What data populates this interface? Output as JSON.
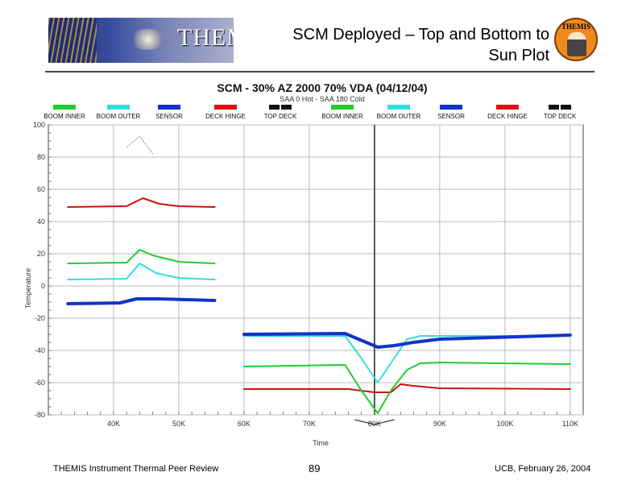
{
  "slide": {
    "title_line1": "SCM Deployed – Top and Bottom to",
    "title_line2": "Sun Plot",
    "banner_logo": "THEMIS",
    "badge_text": "THEMIS",
    "footer_left": "THEMIS Instrument Thermal Peer Review",
    "footer_page": "89",
    "footer_right": "UCB, February 26, 2004"
  },
  "chart_data": {
    "type": "line",
    "title": "SCM - 30% AZ 2000 70% VDA  (04/12/04)",
    "subtitle": "SAA 0 Hot - SAA 180 Cold",
    "xlabel": "Time",
    "ylabel": "Temperature",
    "xlim": [
      30000,
      112000
    ],
    "ylim": [
      -80,
      100
    ],
    "x_ticks": [
      40000,
      50000,
      60000,
      70000,
      80000,
      90000,
      100000,
      110000
    ],
    "x_tick_labels": [
      "40K",
      "50K",
      "60K",
      "70K",
      "80K",
      "90K",
      "100K",
      "110K"
    ],
    "y_ticks": [
      100,
      80,
      60,
      40,
      20,
      0,
      -20,
      -40,
      -60,
      -80
    ],
    "y_tick_labels": [
      "100",
      "80",
      "60",
      "40",
      "20",
      "0",
      "-20",
      "-40",
      "-60",
      "-80"
    ],
    "grid": true,
    "legend_position": "top",
    "legend": [
      {
        "label": "BOOM INNER",
        "color": "#22cc33"
      },
      {
        "label": "BOOM OUTER",
        "color": "#33dddd"
      },
      {
        "label": "SENSOR",
        "color": "#1133cc"
      },
      {
        "label": "DECK HINGE",
        "color": "#dd1111"
      },
      {
        "label": "TOP DECK",
        "color": "#111111"
      },
      {
        "label": "BOOM INNER",
        "color": "#22cc33"
      },
      {
        "label": "BOOM OUTER",
        "color": "#33dddd"
      },
      {
        "label": "SENSOR",
        "color": "#1133cc"
      },
      {
        "label": "DECK HINGE",
        "color": "#dd1111"
      },
      {
        "label": "TOP DECK",
        "color": "#111111"
      }
    ],
    "series": [
      {
        "name": "TOP DECK (hot)",
        "color": "#999999",
        "dashed": true,
        "width": 1,
        "points": [
          [
            42000,
            86
          ],
          [
            44000,
            93
          ],
          [
            46000,
            82
          ]
        ]
      },
      {
        "name": "DECK HINGE (hot)",
        "color": "#cc1111",
        "width": 2,
        "points": [
          [
            33000,
            49
          ],
          [
            42000,
            49.5
          ],
          [
            44500,
            54.5
          ],
          [
            47000,
            51
          ],
          [
            50000,
            49.5
          ],
          [
            55500,
            49
          ]
        ]
      },
      {
        "name": "BOOM INNER (hot)",
        "color": "#22cc33",
        "width": 2,
        "points": [
          [
            33000,
            14
          ],
          [
            42000,
            14.5
          ],
          [
            44000,
            22.5
          ],
          [
            46000,
            19
          ],
          [
            50000,
            15
          ],
          [
            55500,
            14
          ]
        ]
      },
      {
        "name": "BOOM OUTER (hot)",
        "color": "#33dddd",
        "width": 2,
        "points": [
          [
            33000,
            4
          ],
          [
            42000,
            4.5
          ],
          [
            44000,
            14
          ],
          [
            46500,
            8
          ],
          [
            50000,
            5
          ],
          [
            55500,
            4
          ]
        ]
      },
      {
        "name": "SENSOR (hot)",
        "color": "#1133cc",
        "width": 4,
        "points": [
          [
            33000,
            -11
          ],
          [
            41000,
            -10.5
          ],
          [
            43500,
            -8
          ],
          [
            47000,
            -8
          ],
          [
            55500,
            -9
          ]
        ]
      },
      {
        "name": "TOP DECK (cold)",
        "color": "#111111",
        "width": 1,
        "points": [
          [
            77000,
            -83
          ],
          [
            80000,
            -86
          ],
          [
            83000,
            -83
          ]
        ]
      },
      {
        "name": "DECK HINGE (cold)",
        "color": "#cc1111",
        "width": 2,
        "points": [
          [
            60000,
            -64
          ],
          [
            76000,
            -64
          ],
          [
            80000,
            -66
          ],
          [
            82500,
            -66
          ],
          [
            84000,
            -61
          ],
          [
            86000,
            -62
          ],
          [
            90000,
            -63.5
          ],
          [
            110000,
            -64
          ]
        ]
      },
      {
        "name": "BOOM INNER (cold)",
        "color": "#22cc33",
        "width": 2,
        "points": [
          [
            60000,
            -50
          ],
          [
            75500,
            -49
          ],
          [
            78000,
            -65
          ],
          [
            80500,
            -79
          ],
          [
            82500,
            -65
          ],
          [
            85000,
            -52
          ],
          [
            87000,
            -48
          ],
          [
            90000,
            -47.5
          ],
          [
            110000,
            -48.5
          ]
        ]
      },
      {
        "name": "BOOM OUTER (cold)",
        "color": "#33dddd",
        "width": 2,
        "points": [
          [
            60000,
            -31
          ],
          [
            75500,
            -31
          ],
          [
            78000,
            -45
          ],
          [
            80500,
            -60
          ],
          [
            82500,
            -48
          ],
          [
            85000,
            -33
          ],
          [
            87000,
            -31
          ],
          [
            110000,
            -31
          ]
        ]
      },
      {
        "name": "SENSOR (cold)",
        "color": "#1133cc",
        "width": 4,
        "points": [
          [
            60000,
            -30
          ],
          [
            75500,
            -29.5
          ],
          [
            80500,
            -38
          ],
          [
            83000,
            -37
          ],
          [
            86000,
            -35
          ],
          [
            90000,
            -33
          ],
          [
            110000,
            -30.5
          ]
        ]
      }
    ]
  }
}
